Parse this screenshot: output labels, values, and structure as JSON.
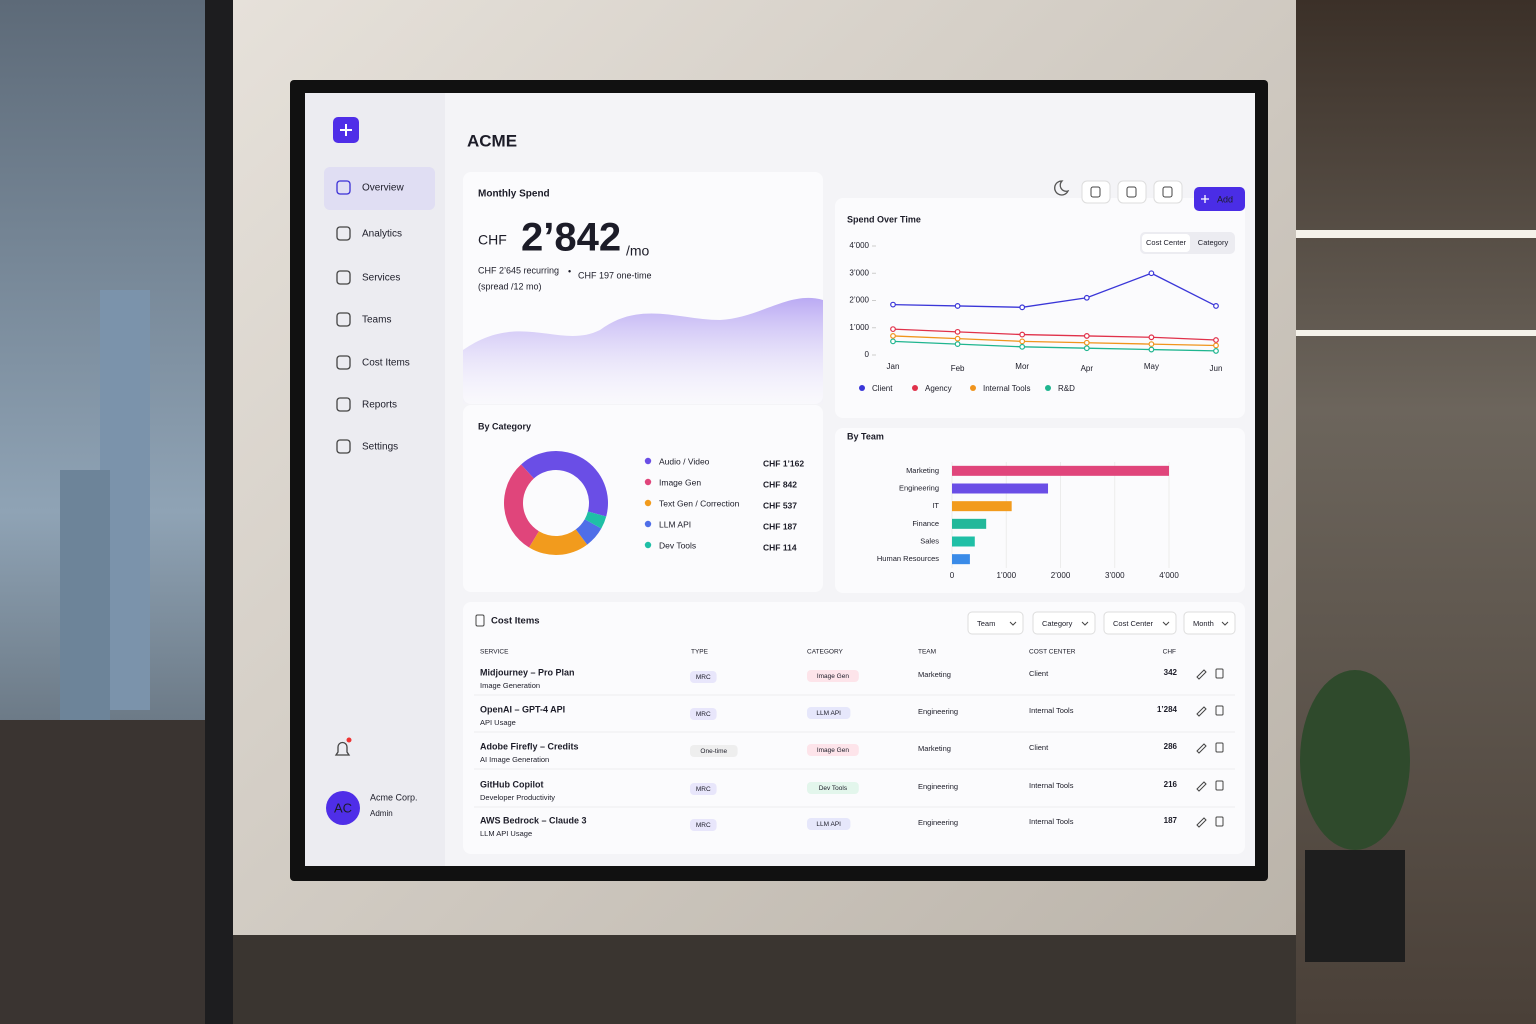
{
  "sidebar": {
    "nav": [
      "Overview",
      "Analytics",
      "Services",
      "Teams",
      "Cost Items",
      "Reports",
      "Settings"
    ],
    "user": {
      "initials": "AC",
      "name": "Acme Corp.",
      "role": "Admin"
    }
  },
  "header": {
    "title": "ACME",
    "add_button": "Add"
  },
  "monthly_spend": {
    "title": "Monthly Spend",
    "currency": "CHF",
    "amount": "2’842",
    "unit": "/mo",
    "recurring": "CHF 2’645 recurring",
    "separator": "•",
    "one_time": "CHF 197 one-time",
    "note": "(spread /12 mo)"
  },
  "chart_data": [
    {
      "type": "line",
      "title": "Spend Over Time",
      "tabs": [
        "Cost Center",
        "Category"
      ],
      "categories": [
        "Jan",
        "Feb",
        "Mor",
        "Apr",
        "May",
        "Jun"
      ],
      "ylim": [
        0,
        4000
      ],
      "yticks": [
        0,
        {
          "value": 1000,
          "label": "1’000"
        },
        {
          "value": 2000,
          "label": "2’000"
        },
        {
          "value": 3000,
          "label": "3’000"
        },
        {
          "value": 4000,
          "label": "4’000"
        }
      ],
      "series": [
        {
          "name": "Client",
          "color": "#3a36d8",
          "values": [
            1850,
            1800,
            1750,
            2100,
            3000,
            1800
          ]
        },
        {
          "name": "Agency",
          "color": "#e0314a",
          "values": [
            950,
            850,
            750,
            700,
            650,
            550
          ]
        },
        {
          "name": "Internal Tools",
          "color": "#f0941c",
          "values": [
            700,
            600,
            500,
            450,
            400,
            350
          ]
        },
        {
          "name": "R&D",
          "color": "#1fb58f",
          "values": [
            500,
            400,
            300,
            250,
            200,
            150
          ]
        }
      ]
    },
    {
      "type": "donut",
      "title": "By Category",
      "categories": [
        "Audio / Video",
        "Image Gen",
        "Text Gen / Correction",
        "LLM API",
        "Dev Tools"
      ],
      "values": [
        1162,
        842,
        537,
        187,
        114
      ],
      "value_labels": [
        "CHF 1’162",
        "CHF 842",
        "CHF 537",
        "CHF 187",
        "CHF 114"
      ],
      "colors": [
        "#6a4ee6",
        "#e0457b",
        "#f29b1d",
        "#4f6ee8",
        "#1fbfa6"
      ]
    },
    {
      "type": "hbar",
      "title": "By Team",
      "categories": [
        "Marketing",
        "Engineering",
        "IT",
        "Finance",
        "Sales",
        "Human Resources"
      ],
      "values": [
        4000,
        1770,
        1100,
        630,
        420,
        330
      ],
      "colors": [
        "#e0457b",
        "#6a4ee6",
        "#f29b1d",
        "#22b89a",
        "#1fbfa6",
        "#3a8be8"
      ],
      "xlim": [
        0,
        4000
      ],
      "xticks": [
        0,
        {
          "value": 1000,
          "label": "1’000"
        },
        {
          "value": 2000,
          "label": "2’000"
        },
        {
          "value": 3000,
          "label": "3’000"
        },
        {
          "value": 4000,
          "label": "4’000"
        }
      ],
      "grid": true
    }
  ],
  "table": {
    "title": "Cost Items",
    "filters": [
      "Team",
      "Category",
      "Cost Center",
      "Month"
    ],
    "columns": [
      "SERVICE",
      "TYPE",
      "CATEGORY",
      "TEAM",
      "COST CENTER",
      "CHF"
    ],
    "rows": [
      [
        "Midjourney – Pro Plan",
        "Image Generation",
        "MRC",
        "Image Gen",
        "Marketing",
        "Client",
        "342"
      ],
      [
        "OpenAI – GPT-4 API",
        "API Usage",
        "MRC",
        "LLM API",
        "Engineering",
        "Internal Tools",
        "1’284"
      ],
      [
        "Adobe Firefly – Credits",
        "AI Image Generation",
        "One-time",
        "Image Gen",
        "Marketing",
        "Client",
        "286"
      ],
      [
        "GitHub Copilot",
        "Developer Productivity",
        "MRC",
        "Dev Tools",
        "Engineering",
        "Internal Tools",
        "216"
      ],
      [
        "AWS Bedrock – Claude 3",
        "LLM API Usage",
        "MRC",
        "LLM API",
        "Engineering",
        "Internal Tools",
        "187"
      ]
    ]
  }
}
